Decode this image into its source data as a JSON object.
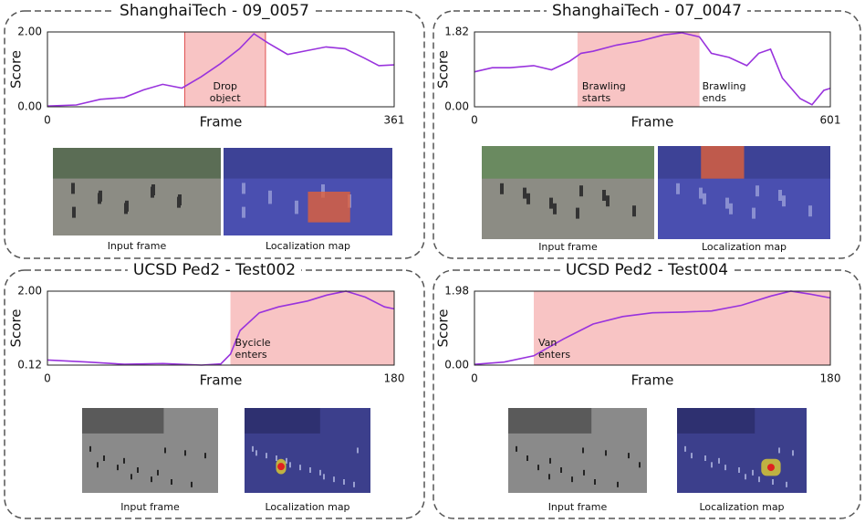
{
  "chart_data": [
    {
      "type": "line",
      "title": "ShanghaiTech - 09_0057",
      "x_label": "Frame",
      "y_label": "Score",
      "xlim": [
        0,
        361
      ],
      "xticks": [
        0,
        361
      ],
      "ylim": [
        0,
        2
      ],
      "yticks": [
        {
          "value": 0,
          "label": "0.00"
        },
        {
          "value": 2,
          "label": "2.00"
        }
      ],
      "x": [
        0,
        30,
        55,
        80,
        100,
        120,
        140,
        160,
        180,
        200,
        215,
        230,
        250,
        270,
        290,
        310,
        330,
        345,
        361
      ],
      "values": [
        0.02,
        0.05,
        0.2,
        0.25,
        0.45,
        0.6,
        0.5,
        0.8,
        1.15,
        1.55,
        1.95,
        1.7,
        1.4,
        1.5,
        1.6,
        1.55,
        1.3,
        1.1,
        1.12
      ],
      "color": "#9933dd",
      "highlight": {
        "from": 143,
        "to": 227,
        "color": "#f8c4c4",
        "border": "#e05050"
      },
      "annotations": [
        [
          "Drop",
          "object"
        ]
      ],
      "captions": [
        "Input frame",
        "Localization map"
      ]
    },
    {
      "type": "line",
      "title": "ShanghaiTech - 07_0047",
      "x_label": "Frame",
      "y_label": "Score",
      "xlim": [
        0,
        601
      ],
      "xticks": [
        0,
        601
      ],
      "ylim": [
        0,
        1.82
      ],
      "yticks": [
        {
          "value": 0,
          "label": "0.00"
        },
        {
          "value": 1.82,
          "label": "1.82"
        }
      ],
      "x": [
        0,
        30,
        60,
        100,
        130,
        160,
        180,
        200,
        240,
        280,
        320,
        350,
        380,
        400,
        430,
        460,
        480,
        500,
        520,
        550,
        570,
        590,
        601
      ],
      "values": [
        0.85,
        0.95,
        0.95,
        1.0,
        0.9,
        1.1,
        1.3,
        1.35,
        1.5,
        1.6,
        1.75,
        1.8,
        1.7,
        1.3,
        1.2,
        1.0,
        1.3,
        1.4,
        0.7,
        0.2,
        0.05,
        0.4,
        0.45
      ],
      "color": "#9933dd",
      "highlight": {
        "from": 174,
        "to": 380,
        "color": "#f8c4c4"
      },
      "annotations": [
        [
          "Brawling",
          "starts"
        ],
        [
          "Brawling",
          "ends"
        ]
      ],
      "captions": [
        "Input frame",
        "Localization map"
      ]
    },
    {
      "type": "line",
      "title": "UCSD Ped2 - Test002",
      "x_label": "Frame",
      "y_label": "Score",
      "xlim": [
        0,
        180
      ],
      "xticks": [
        0,
        180
      ],
      "ylim": [
        0.12,
        2
      ],
      "yticks": [
        {
          "value": 0.12,
          "label": "0.12"
        },
        {
          "value": 2,
          "label": "2.00"
        }
      ],
      "x": [
        0,
        20,
        40,
        60,
        80,
        90,
        95,
        100,
        110,
        120,
        135,
        145,
        155,
        165,
        175,
        180
      ],
      "values": [
        0.25,
        0.2,
        0.14,
        0.16,
        0.12,
        0.15,
        0.4,
        1.0,
        1.45,
        1.6,
        1.75,
        1.9,
        2.0,
        1.85,
        1.6,
        1.55
      ],
      "color": "#9933dd",
      "highlight": {
        "from": 95,
        "to": 180,
        "color": "#f8c4c4"
      },
      "annotations": [
        [
          "Bycicle",
          "enters"
        ]
      ],
      "captions": [
        "Input frame",
        "Localization map"
      ]
    },
    {
      "type": "line",
      "title": "UCSD Ped2 - Test004",
      "x_label": "Frame",
      "y_label": "Score",
      "xlim": [
        0,
        180
      ],
      "xticks": [
        0,
        180
      ],
      "ylim": [
        0,
        1.98
      ],
      "yticks": [
        {
          "value": 0,
          "label": "0.00"
        },
        {
          "value": 1.98,
          "label": "1.98"
        }
      ],
      "x": [
        0,
        15,
        30,
        45,
        60,
        75,
        90,
        105,
        120,
        135,
        150,
        160,
        170,
        180
      ],
      "values": [
        0.02,
        0.08,
        0.25,
        0.7,
        1.1,
        1.3,
        1.4,
        1.42,
        1.45,
        1.6,
        1.85,
        1.98,
        1.9,
        1.8
      ],
      "color": "#9933dd",
      "highlight": {
        "from": 30,
        "to": 180,
        "color": "#f8c4c4"
      },
      "annotations": [
        [
          "Van",
          "enters"
        ]
      ],
      "captions": [
        "Input frame",
        "Localization map"
      ]
    }
  ]
}
